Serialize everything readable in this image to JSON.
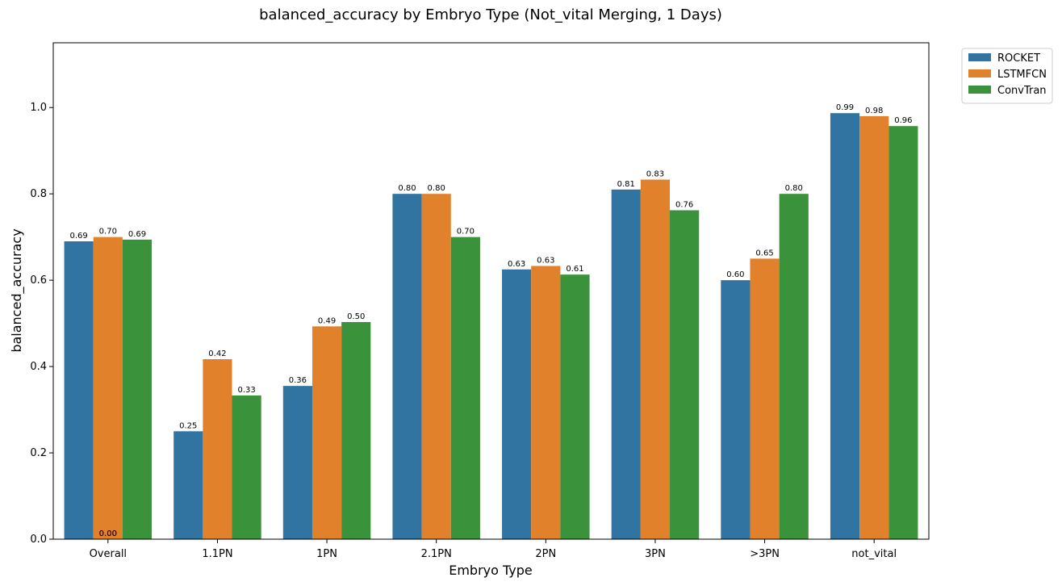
{
  "chart_data": {
    "type": "bar",
    "title": "balanced_accuracy by Embryo Type (Not_vital Merging, 1 Days)",
    "xlabel": "Embryo Type",
    "ylabel": "balanced_accuracy",
    "ylim": [
      0,
      1.15
    ],
    "yticks": [
      "0.0",
      "0.2",
      "0.4",
      "0.6",
      "0.8",
      "1.0"
    ],
    "categories": [
      "Overall",
      "1.1PN",
      "1PN",
      "2.1PN",
      "2PN",
      "3PN",
      ">3PN",
      "not_vital"
    ],
    "series": [
      {
        "name": "ROCKET",
        "color": "#3274a1",
        "values": [
          0.69,
          0.25,
          0.355,
          0.8,
          0.625,
          0.81,
          0.6,
          0.987
        ],
        "labels": [
          "0.69",
          "0.25",
          "0.36",
          "0.80",
          "0.63",
          "0.81",
          "0.60",
          "0.99"
        ]
      },
      {
        "name": "LSTMFCN",
        "color": "#e1812c",
        "values": [
          0.7,
          0.417,
          0.493,
          0.8,
          0.633,
          0.833,
          0.65,
          0.98
        ],
        "labels": [
          "0.70",
          "0.42",
          "0.49",
          "0.80",
          "0.63",
          "0.83",
          "0.65",
          "0.98"
        ]
      },
      {
        "name": "ConvTran",
        "color": "#3a923a",
        "values": [
          0.694,
          0.333,
          0.503,
          0.7,
          0.613,
          0.762,
          0.8,
          0.957
        ],
        "labels": [
          "0.69",
          "0.33",
          "0.50",
          "0.70",
          "0.61",
          "0.76",
          "0.80",
          "0.96"
        ]
      }
    ],
    "annotations": [
      {
        "category": "Overall",
        "series": "LSTMFCN",
        "text": "0.00",
        "value": 0.0
      },
      {
        "category": "Overall",
        "series": "LSTMFCN",
        "text": "0.00",
        "value": 0.0
      }
    ],
    "legend": "outside-top-right",
    "grid": false
  }
}
